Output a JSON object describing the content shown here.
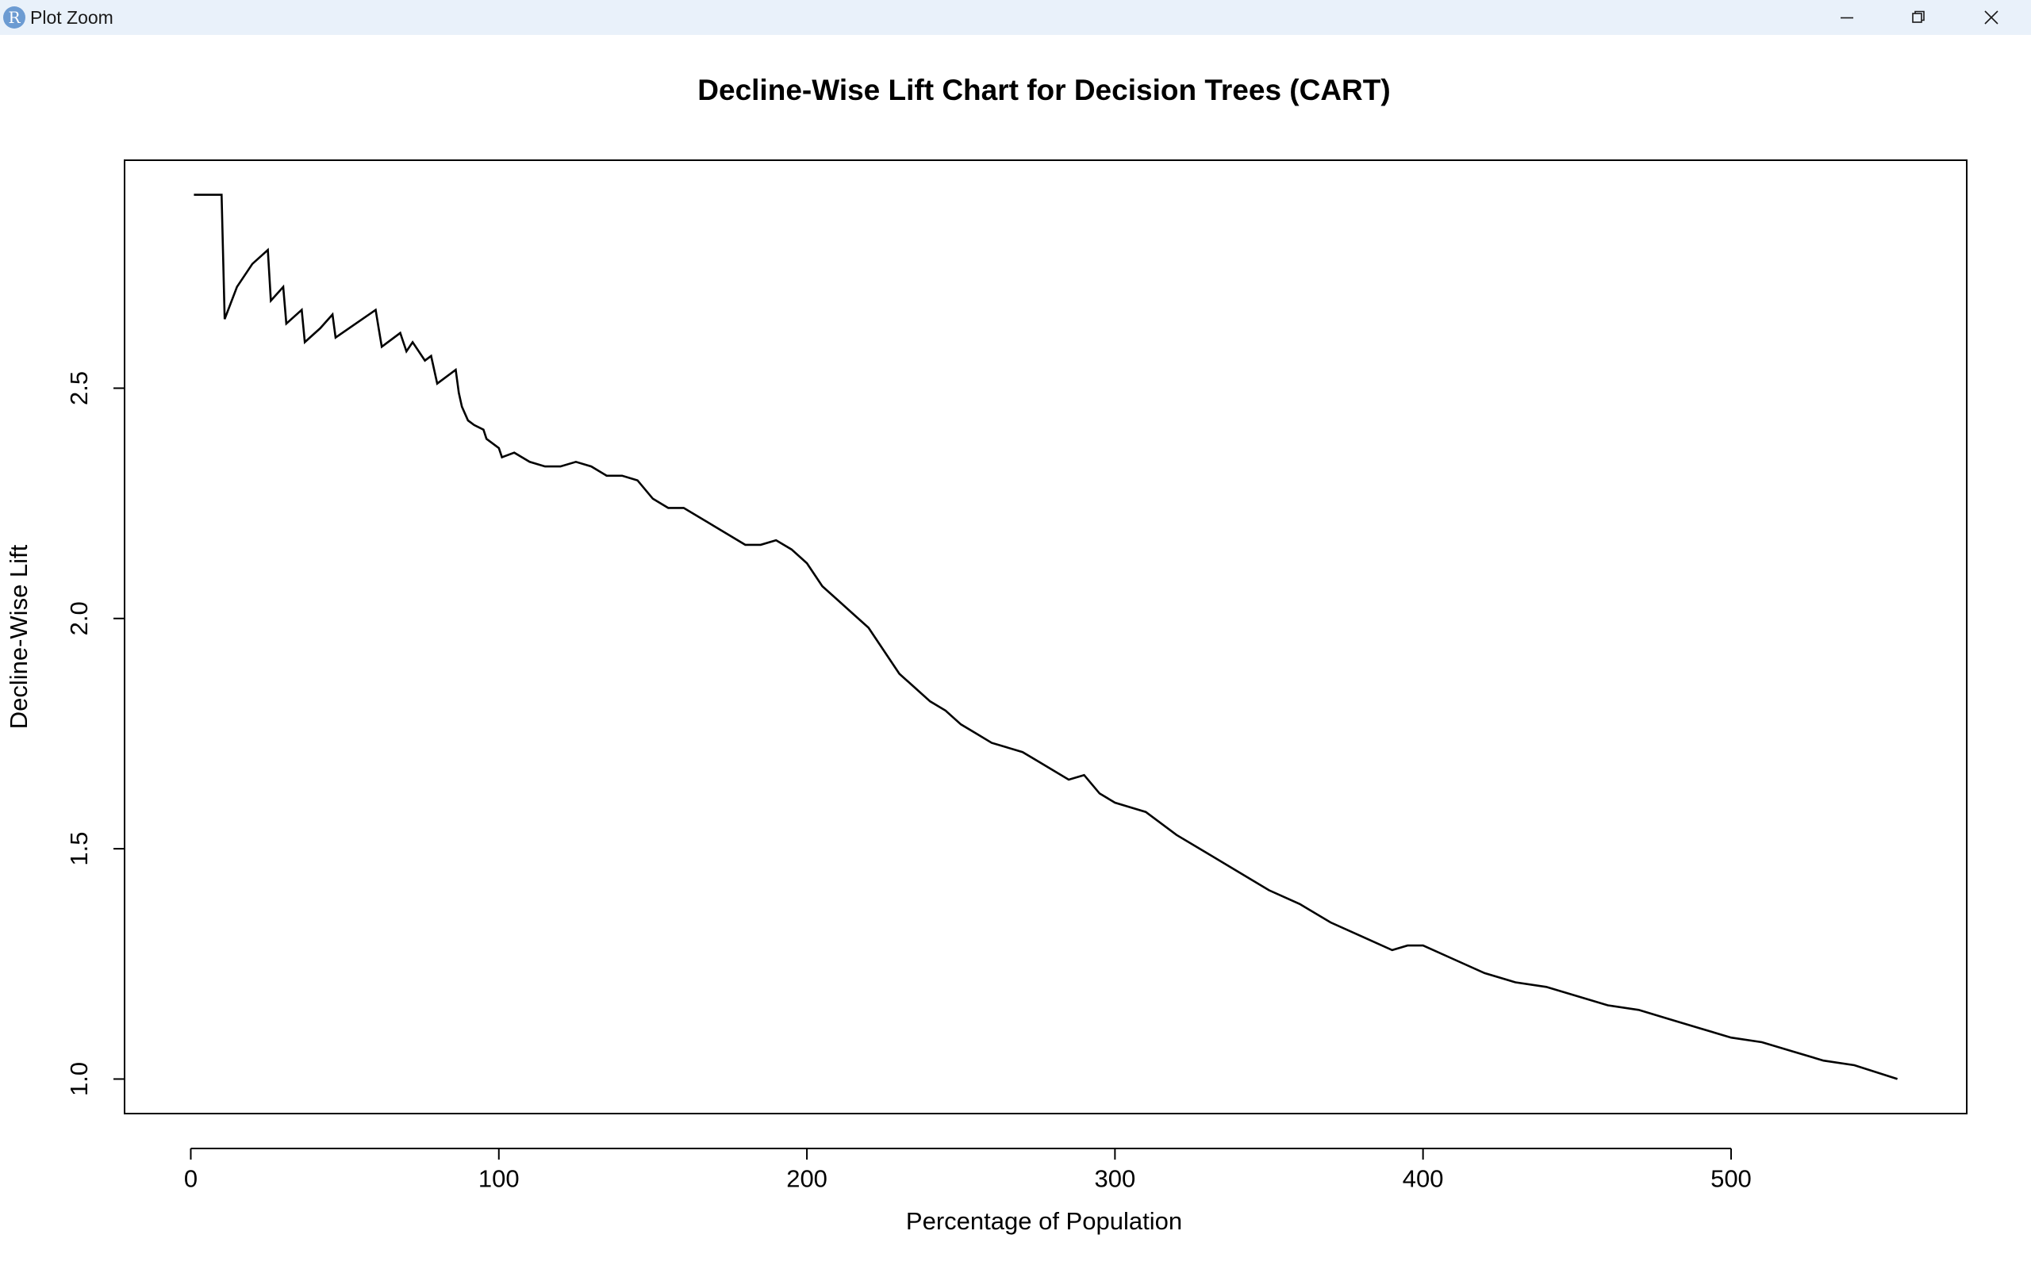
{
  "window": {
    "title": "Plot Zoom",
    "app_icon_letter": "R",
    "controls": [
      "minimize-icon",
      "restore-icon",
      "close-icon"
    ]
  },
  "chart_data": {
    "type": "line",
    "title": "Decline-Wise Lift Chart for Decision Trees (CART)",
    "xlabel": "Percentage of Population",
    "ylabel": "Decline-Wise Lift",
    "xlim": [
      -21.5,
      576.5
    ],
    "ylim": [
      0.925,
      2.995
    ],
    "x_ticks": [
      0,
      100,
      200,
      300,
      400,
      500
    ],
    "x_tick_labels": [
      "0",
      "100",
      "200",
      "300",
      "400",
      "500"
    ],
    "y_ticks": [
      1.0,
      1.5,
      2.0,
      2.5
    ],
    "y_tick_labels": [
      "1.0",
      "1.5",
      "2.0",
      "2.5"
    ],
    "grid": false,
    "legend": "none",
    "line_color": "#000000",
    "series": [
      {
        "x": [
          1,
          10,
          11,
          15,
          20,
          25,
          26,
          30,
          31,
          36,
          37,
          42,
          46,
          47,
          60,
          61,
          62,
          68,
          70,
          72,
          76,
          78,
          80,
          82,
          86,
          87,
          88,
          90,
          92,
          95,
          96,
          100,
          101,
          105,
          110,
          115,
          120,
          125,
          130,
          135,
          140,
          145,
          150,
          155,
          160,
          165,
          170,
          175,
          180,
          185,
          190,
          195,
          200,
          205,
          210,
          215,
          220,
          225,
          230,
          235,
          240,
          245,
          250,
          255,
          260,
          265,
          270,
          275,
          280,
          285,
          290,
          295,
          300,
          305,
          310,
          320,
          330,
          340,
          350,
          360,
          370,
          380,
          390,
          395,
          400,
          410,
          420,
          430,
          440,
          450,
          460,
          470,
          480,
          490,
          500,
          510,
          520,
          530,
          540,
          554
        ],
        "y": [
          2.92,
          2.92,
          2.65,
          2.72,
          2.77,
          2.8,
          2.69,
          2.72,
          2.64,
          2.67,
          2.6,
          2.63,
          2.66,
          2.61,
          2.67,
          2.63,
          2.59,
          2.62,
          2.58,
          2.6,
          2.56,
          2.57,
          2.51,
          2.52,
          2.54,
          2.49,
          2.46,
          2.43,
          2.42,
          2.41,
          2.39,
          2.37,
          2.35,
          2.36,
          2.34,
          2.33,
          2.33,
          2.34,
          2.33,
          2.31,
          2.31,
          2.3,
          2.26,
          2.24,
          2.24,
          2.22,
          2.2,
          2.18,
          2.16,
          2.16,
          2.17,
          2.15,
          2.12,
          2.07,
          2.04,
          2.01,
          1.98,
          1.93,
          1.88,
          1.85,
          1.82,
          1.8,
          1.77,
          1.75,
          1.73,
          1.72,
          1.71,
          1.69,
          1.67,
          1.65,
          1.66,
          1.62,
          1.6,
          1.59,
          1.58,
          1.53,
          1.49,
          1.45,
          1.41,
          1.38,
          1.34,
          1.31,
          1.28,
          1.29,
          1.29,
          1.26,
          1.23,
          1.21,
          1.2,
          1.18,
          1.16,
          1.15,
          1.13,
          1.11,
          1.09,
          1.08,
          1.06,
          1.04,
          1.03,
          1.0
        ]
      }
    ]
  }
}
